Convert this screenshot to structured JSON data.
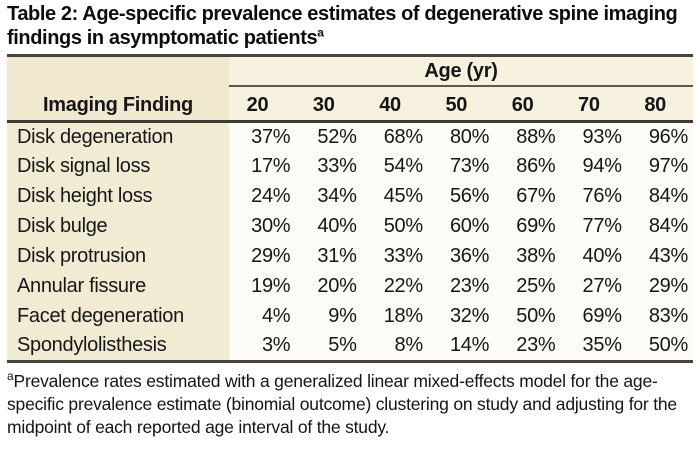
{
  "title": {
    "text": "Table 2: Age-specific prevalence estimates of degenerative spine imaging findings in asymptomatic patients",
    "superscript": "a"
  },
  "table": {
    "age_group_label": "Age (yr)",
    "row_header_label": "Imaging Finding",
    "age_columns": [
      "20",
      "30",
      "40",
      "50",
      "60",
      "70",
      "80"
    ],
    "rows": [
      {
        "label": "Disk degeneration",
        "values": [
          "37%",
          "52%",
          "68%",
          "80%",
          "88%",
          "93%",
          "96%"
        ]
      },
      {
        "label": "Disk signal loss",
        "values": [
          "17%",
          "33%",
          "54%",
          "73%",
          "86%",
          "94%",
          "97%"
        ]
      },
      {
        "label": "Disk height loss",
        "values": [
          "24%",
          "34%",
          "45%",
          "56%",
          "67%",
          "76%",
          "84%"
        ]
      },
      {
        "label": "Disk bulge",
        "values": [
          "30%",
          "40%",
          "50%",
          "60%",
          "69%",
          "77%",
          "84%"
        ]
      },
      {
        "label": "Disk protrusion",
        "values": [
          "29%",
          "31%",
          "33%",
          "36%",
          "38%",
          "40%",
          "43%"
        ]
      },
      {
        "label": "Annular fissure",
        "values": [
          "19%",
          "20%",
          "22%",
          "23%",
          "25%",
          "27%",
          "29%"
        ]
      },
      {
        "label": "Facet degeneration",
        "values": [
          "4%",
          "9%",
          "18%",
          "32%",
          "50%",
          "69%",
          "83%"
        ]
      },
      {
        "label": "Spondylolisthesis",
        "values": [
          "3%",
          "5%",
          "8%",
          "14%",
          "23%",
          "35%",
          "50%"
        ]
      }
    ]
  },
  "footnote": {
    "superscript": "a",
    "text": "Prevalence rates estimated with a generalized linear mixed-effects model for the age-specific prevalence estimate (binomial outcome) clustering on study and adjusting for the midpoint of each reported age interval of the study."
  },
  "colors": {
    "header_band_bg": "#f7f2e0",
    "row_label_column_bg": "#f2ebd4",
    "left_header_bg": "#f0e9cf",
    "data_cell_bg": "#fcfbf6",
    "rule_color": "#45453b"
  }
}
